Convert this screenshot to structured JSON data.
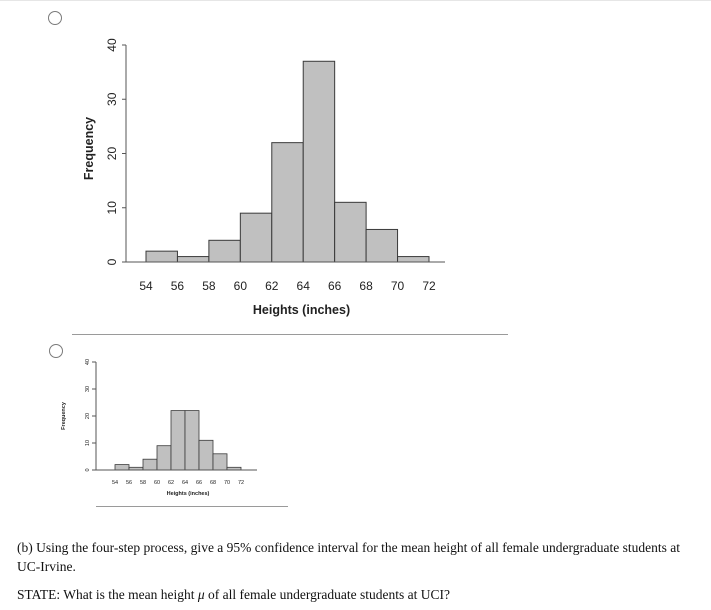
{
  "options": [
    {
      "chart_data": {
        "type": "bar",
        "categories": [
          "54",
          "56",
          "58",
          "60",
          "62",
          "64",
          "66",
          "68",
          "70"
        ],
        "bins": [
          [
            54,
            56
          ],
          [
            56,
            58
          ],
          [
            58,
            60
          ],
          [
            60,
            62
          ],
          [
            62,
            64
          ],
          [
            64,
            66
          ],
          [
            66,
            68
          ],
          [
            68,
            70
          ],
          [
            70,
            72
          ]
        ],
        "values": [
          2,
          1,
          4,
          9,
          22,
          37,
          11,
          6,
          1
        ],
        "x_ticks": [
          "54",
          "56",
          "58",
          "60",
          "62",
          "64",
          "66",
          "68",
          "70",
          "72"
        ],
        "y_ticks": [
          "0",
          "10",
          "20",
          "30",
          "40"
        ],
        "xlim": [
          54,
          72
        ],
        "ylim": [
          0,
          40
        ],
        "xlabel": "Heights (inches)",
        "ylabel": "Frequency",
        "bar_color": "#c0c0c0",
        "grid": false
      }
    },
    {
      "chart_data": {
        "type": "bar",
        "categories": [
          "54",
          "56",
          "58",
          "60",
          "62",
          "64",
          "66",
          "68",
          "70"
        ],
        "bins": [
          [
            54,
            56
          ],
          [
            56,
            58
          ],
          [
            58,
            60
          ],
          [
            60,
            62
          ],
          [
            62,
            64
          ],
          [
            64,
            66
          ],
          [
            66,
            68
          ],
          [
            68,
            70
          ],
          [
            70,
            72
          ]
        ],
        "values": [
          2,
          1,
          4,
          9,
          22,
          22,
          11,
          6,
          1
        ],
        "x_ticks": [
          "54",
          "56",
          "58",
          "60",
          "62",
          "64",
          "66",
          "68",
          "70",
          "72"
        ],
        "y_ticks": [
          "0",
          "10",
          "20",
          "30",
          "40"
        ],
        "xlim": [
          54,
          72
        ],
        "ylim": [
          0,
          40
        ],
        "xlabel": "Heights (inches)",
        "ylabel": "Frequency",
        "bar_color": "#c0c0c0",
        "grid": false
      }
    }
  ],
  "question": {
    "prompt": "(b) Using the four-step process, give a 95% confidence interval for the mean height of all female undergraduate students at UC-Irvine.",
    "state_before": "STATE: What is the mean height ",
    "state_symbol": "μ",
    "state_after": " of all female undergraduate students at UCI?"
  }
}
